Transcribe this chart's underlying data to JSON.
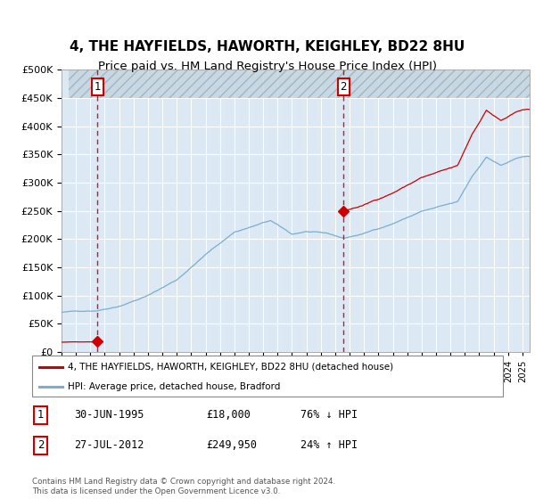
{
  "title": "4, THE HAYFIELDS, HAWORTH, KEIGHLEY, BD22 8HU",
  "subtitle": "Price paid vs. HM Land Registry's House Price Index (HPI)",
  "legend_line1": "4, THE HAYFIELDS, HAWORTH, KEIGHLEY, BD22 8HU (detached house)",
  "legend_line2": "HPI: Average price, detached house, Bradford",
  "transaction1_date": "30-JUN-1995",
  "transaction1_price": "£18,000",
  "transaction1_hpi": "76% ↓ HPI",
  "transaction1_year": 1995.5,
  "transaction1_value": 18000,
  "transaction2_date": "27-JUL-2012",
  "transaction2_price": "£249,950",
  "transaction2_hpi": "24% ↑ HPI",
  "transaction2_year": 2012.583,
  "transaction2_value": 249950,
  "footer": "Contains HM Land Registry data © Crown copyright and database right 2024.\nThis data is licensed under the Open Government Licence v3.0.",
  "ylim_min": 0,
  "ylim_max": 500000,
  "hatch_above": 450000,
  "line_color_red": "#cc0000",
  "line_color_blue": "#7aadcf",
  "dot_color": "#cc0000",
  "background_color": "#dce9f5",
  "grid_color": "#ffffff",
  "title_fontsize": 11,
  "subtitle_fontsize": 9.5,
  "xmin": 1993.5,
  "xmax": 2025.5
}
